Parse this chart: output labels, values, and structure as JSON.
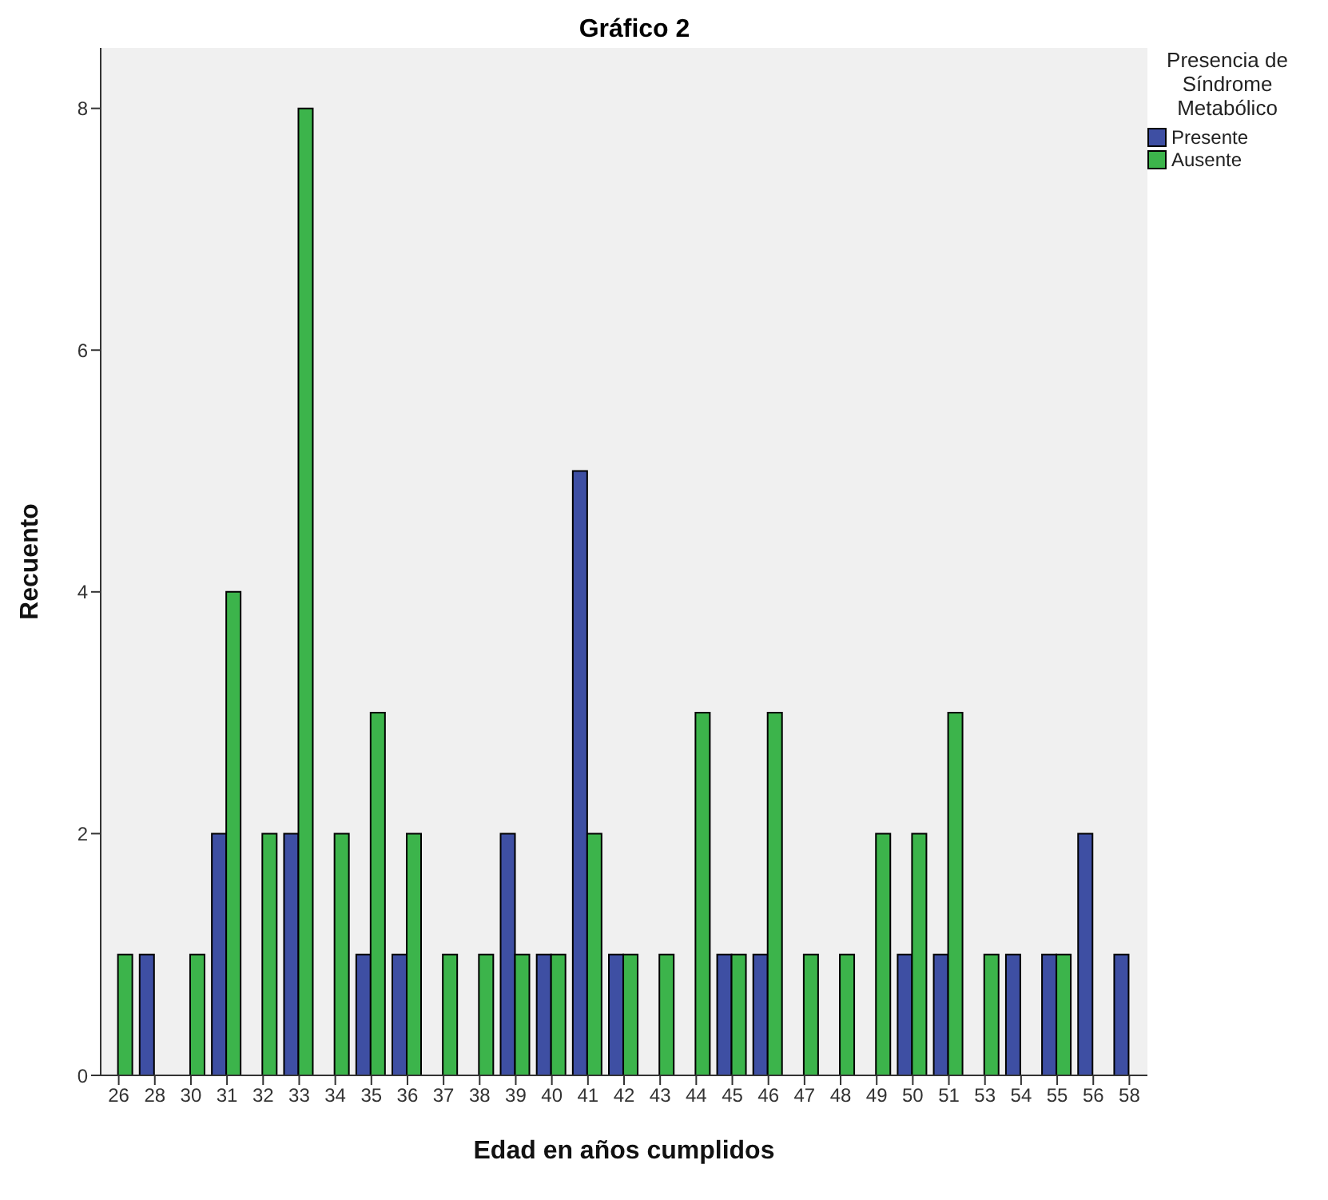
{
  "chart_data": {
    "type": "bar",
    "title": "Gráfico 2",
    "xlabel": "Edad en años cumplidos",
    "ylabel": "Recuento",
    "legend_title": "Presencia de Síndrome Metabólico",
    "categories": [
      "26",
      "28",
      "30",
      "31",
      "32",
      "33",
      "34",
      "35",
      "36",
      "37",
      "38",
      "39",
      "40",
      "41",
      "42",
      "43",
      "44",
      "45",
      "46",
      "47",
      "48",
      "49",
      "50",
      "51",
      "53",
      "54",
      "55",
      "56",
      "58"
    ],
    "series": [
      {
        "name": "Presente",
        "color": "#3e4fa3",
        "values": [
          null,
          1,
          null,
          2,
          null,
          2,
          null,
          1,
          1,
          null,
          null,
          2,
          1,
          5,
          1,
          null,
          null,
          1,
          1,
          null,
          null,
          null,
          1,
          1,
          null,
          1,
          1,
          2,
          1
        ]
      },
      {
        "name": "Ausente",
        "color": "#3cb44b",
        "values": [
          1,
          null,
          1,
          4,
          2,
          8,
          2,
          3,
          2,
          1,
          1,
          1,
          1,
          2,
          1,
          1,
          3,
          1,
          3,
          1,
          1,
          2,
          2,
          3,
          1,
          null,
          1,
          null,
          null
        ]
      }
    ],
    "ylim": [
      0,
      8.5
    ],
    "yticks": [
      0,
      2,
      4,
      6,
      8
    ],
    "grid": false,
    "legend": "top right"
  }
}
